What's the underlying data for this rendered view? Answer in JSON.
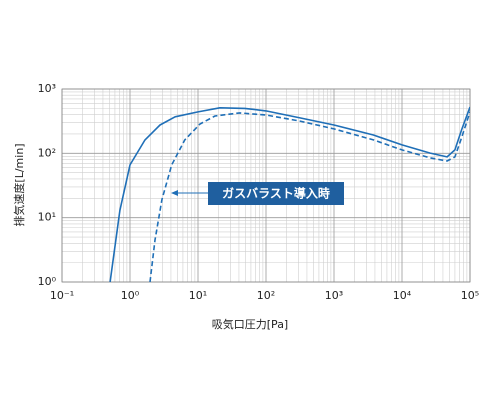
{
  "chart_data": {
    "type": "line",
    "xlabel": "吸気口圧力[Pa]",
    "ylabel": "排気速度[L/min]",
    "annotation": "ガスバラスト導入時",
    "log_x": true,
    "log_y": true,
    "grid": true,
    "xlim": [
      0.1,
      100000
    ],
    "ylim": [
      1,
      1000
    ],
    "xticks": [
      {
        "value": 0.1,
        "label": "10⁻¹"
      },
      {
        "value": 1,
        "label": "10⁰"
      },
      {
        "value": 10,
        "label": "10¹"
      },
      {
        "value": 100,
        "label": "10²"
      },
      {
        "value": 1000,
        "label": "10³"
      },
      {
        "value": 10000,
        "label": "10⁴"
      },
      {
        "value": 100000,
        "label": "10⁵"
      }
    ],
    "yticks": [
      {
        "value": 1,
        "label": "10⁰"
      },
      {
        "value": 10,
        "label": "10¹"
      },
      {
        "value": 100,
        "label": "10²"
      },
      {
        "value": 1000,
        "label": "10³"
      }
    ],
    "series": [
      {
        "color": "#1f6fb7",
        "dash": false,
        "x": [
          0.51,
          0.71,
          1,
          1.66,
          2.76,
          4.6,
          10,
          21,
          49,
          100,
          316,
          1000,
          3800,
          10000,
          26000,
          46000,
          60000,
          75000,
          100000
        ],
        "values": [
          1,
          13,
          66,
          162,
          276,
          370,
          440,
          510,
          500,
          457,
          355,
          276,
          193,
          135,
          101,
          88,
          113,
          230,
          525
        ]
      },
      {
        "color": "#1f6fb7",
        "dash": true,
        "x": [
          1.97,
          2.33,
          2.95,
          4.1,
          6.4,
          10.7,
          17.8,
          41,
          100,
          316,
          1000,
          3800,
          10000,
          26000,
          46000,
          60000,
          75000,
          100000
        ],
        "values": [
          1,
          4.5,
          19,
          66,
          162,
          286,
          380,
          425,
          395,
          317,
          240,
          162,
          113,
          85,
          76,
          88,
          173,
          440
        ]
      }
    ]
  }
}
